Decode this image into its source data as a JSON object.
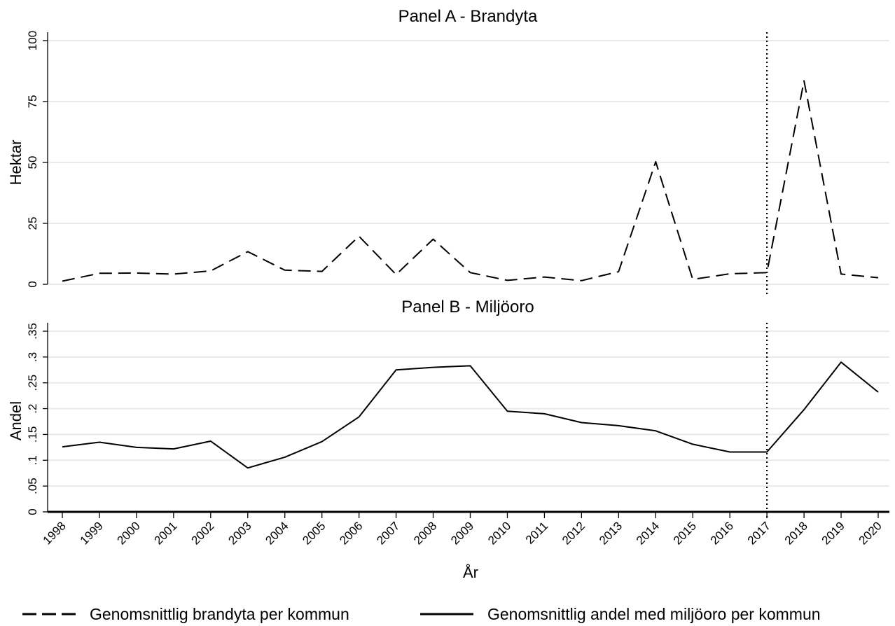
{
  "chart_data": [
    {
      "type": "line",
      "title": "Panel A - Brandyta",
      "xlabel": "",
      "ylabel": "Hektar",
      "ylim": [
        0,
        100
      ],
      "yticks": [
        "0",
        "25",
        "50",
        "75",
        "100"
      ],
      "ytick_values": [
        0,
        25,
        50,
        75,
        100
      ],
      "grid": true,
      "x": [
        1998,
        1999,
        2000,
        2001,
        2002,
        2003,
        2004,
        2005,
        2006,
        2007,
        2008,
        2009,
        2010,
        2011,
        2012,
        2013,
        2014,
        2015,
        2016,
        2017,
        2018,
        2019,
        2020
      ],
      "series": [
        {
          "name": "Genomsnittlig brandyta per kommun",
          "style": "dashed",
          "values": [
            1.3,
            4.5,
            4.6,
            4.2,
            5.5,
            13.4,
            5.8,
            5.3,
            19.7,
            4.0,
            18.5,
            4.8,
            1.6,
            3.0,
            1.5,
            5.2,
            50.3,
            2.0,
            4.3,
            4.8,
            83.5,
            4.2,
            2.7
          ]
        }
      ],
      "reference_line": {
        "x": 2017,
        "style": "dotted"
      }
    },
    {
      "type": "line",
      "title": "Panel B - Miljöoro",
      "xlabel": "År",
      "ylabel": "Andel",
      "ylim": [
        0,
        0.35
      ],
      "yticks": [
        "0",
        ".05",
        ".1",
        ".15",
        ".2",
        ".25",
        ".3",
        ".35"
      ],
      "ytick_values": [
        0,
        0.05,
        0.1,
        0.15,
        0.2,
        0.25,
        0.3,
        0.35
      ],
      "grid": true,
      "x": [
        1998,
        1999,
        2000,
        2001,
        2002,
        2003,
        2004,
        2005,
        2006,
        2007,
        2008,
        2009,
        2010,
        2011,
        2012,
        2013,
        2014,
        2015,
        2016,
        2017,
        2018,
        2019,
        2020
      ],
      "xticks": [
        "1998",
        "1999",
        "2000",
        "2001",
        "2002",
        "2003",
        "2004",
        "2005",
        "2006",
        "2007",
        "2008",
        "2009",
        "2010",
        "2011",
        "2012",
        "2013",
        "2014",
        "2015",
        "2016",
        "2017",
        "2018",
        "2019",
        "2020"
      ],
      "series": [
        {
          "name": "Genomsnittlig andel med miljöoro per kommun",
          "style": "solid",
          "values": [
            0.126,
            0.135,
            0.125,
            0.122,
            0.137,
            0.085,
            0.106,
            0.136,
            0.184,
            0.275,
            0.28,
            0.283,
            0.195,
            0.19,
            0.173,
            0.167,
            0.157,
            0.131,
            0.116,
            0.116,
            0.198,
            0.29,
            0.232
          ]
        }
      ],
      "reference_line": {
        "x": 2017,
        "style": "dotted"
      },
      "zero_line": true
    }
  ],
  "legend": {
    "placement": "bottom",
    "items": [
      {
        "label": "Genomsnittlig brandyta per kommun",
        "style": "dashed"
      },
      {
        "label": "Genomsnittlig andel med miljöoro per kommun",
        "style": "solid"
      }
    ]
  }
}
